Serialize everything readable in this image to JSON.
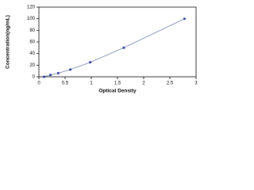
{
  "chart_data": {
    "type": "scatter",
    "x_label": "Optical Density",
    "y_label": "Concentration(ng/mL)",
    "series": [
      {
        "color": "#1c2f8c",
        "x": [
          0.1,
          0.22,
          0.37,
          0.6,
          0.98,
          1.62,
          2.78
        ],
        "values": [
          0,
          3.13,
          6.25,
          12.5,
          25,
          50,
          100
        ]
      }
    ],
    "line_color": "#5a6a9a",
    "xlim": [
      0,
      3
    ],
    "xticks": [
      0,
      0.5,
      1,
      1.5,
      2,
      2.5,
      3
    ],
    "ylim": [
      0,
      120
    ],
    "yticks": [
      0,
      20,
      40,
      60,
      80,
      100,
      120
    ]
  }
}
